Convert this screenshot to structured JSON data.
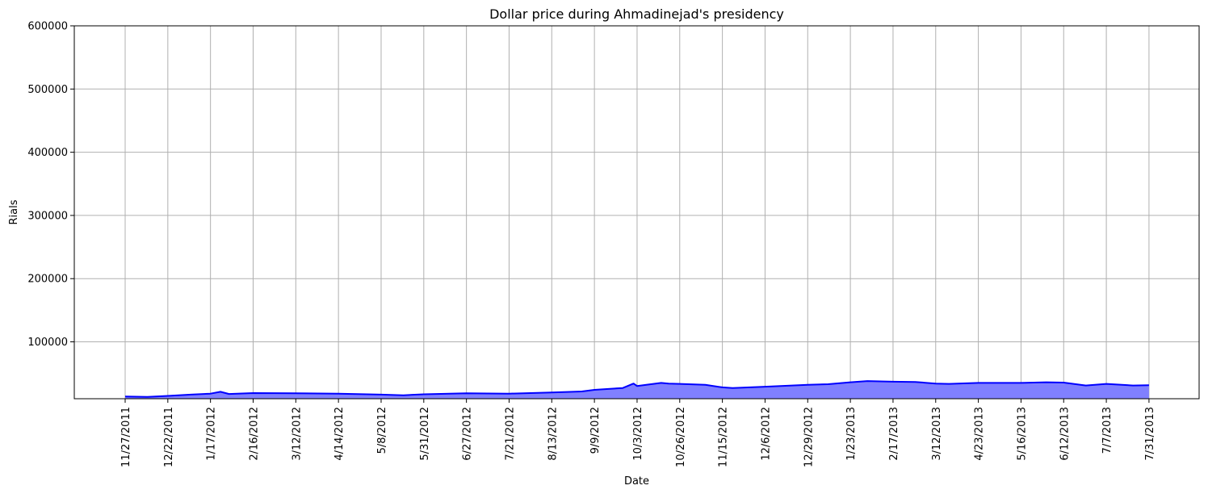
{
  "chart_data": {
    "type": "area",
    "title": "Dollar price during Ahmadinejad's presidency",
    "xlabel": "Date",
    "ylabel": "Rials",
    "ylim": [
      10000,
      600000
    ],
    "yticks": [
      100000,
      200000,
      300000,
      400000,
      500000,
      600000
    ],
    "xtick_labels": [
      "11/27/2011",
      "12/22/2011",
      "1/17/2012",
      "2/16/2012",
      "3/12/2012",
      "4/14/2012",
      "5/8/2012",
      "5/31/2012",
      "6/27/2012",
      "7/21/2012",
      "8/13/2012",
      "9/9/2012",
      "10/3/2012",
      "10/26/2012",
      "11/15/2012",
      "12/6/2012",
      "12/29/2012",
      "1/23/2013",
      "2/17/2013",
      "3/12/2013",
      "4/23/2013",
      "5/16/2013",
      "6/12/2013",
      "7/7/2013",
      "7/31/2013"
    ],
    "grid": true,
    "line_color": "#0000ff",
    "fill_color": "#8080ff",
    "series": [
      {
        "x": [
          "11/27/2011",
          "12/10/2011",
          "12/22/2011",
          "1/5/2012",
          "1/17/2012",
          "1/24/2012",
          "1/30/2012",
          "2/16/2012",
          "3/12/2012",
          "4/14/2012",
          "5/8/2012",
          "5/20/2012",
          "5/31/2012",
          "6/27/2012",
          "7/21/2012",
          "8/13/2012",
          "9/1/2012",
          "9/9/2012",
          "9/25/2012",
          "10/1/2012",
          "10/3/2012",
          "10/8/2012",
          "10/16/2012",
          "10/20/2012",
          "10/26/2012",
          "11/7/2012",
          "11/15/2012",
          "11/20/2012",
          "12/6/2012",
          "12/29/2012",
          "1/10/2013",
          "1/23/2013",
          "2/2/2013",
          "2/17/2013",
          "3/1/2013",
          "3/12/2013",
          "3/25/2013",
          "4/23/2013",
          "5/16/2013",
          "6/1/2013",
          "6/12/2013",
          "6/25/2013",
          "7/7/2013",
          "7/22/2013",
          "7/31/2013"
        ],
        "values": [
          13500,
          13000,
          14500,
          16500,
          18000,
          21000,
          17500,
          19000,
          18500,
          18000,
          16500,
          15500,
          17000,
          18500,
          18000,
          20000,
          21500,
          24000,
          27000,
          34000,
          30000,
          32000,
          35000,
          34000,
          33500,
          32000,
          28000,
          27000,
          29000,
          32000,
          33000,
          36000,
          38000,
          37000,
          36500,
          34000,
          33500,
          35000,
          35000,
          36000,
          35500,
          31000,
          33500,
          31000,
          31500
        ]
      }
    ]
  }
}
